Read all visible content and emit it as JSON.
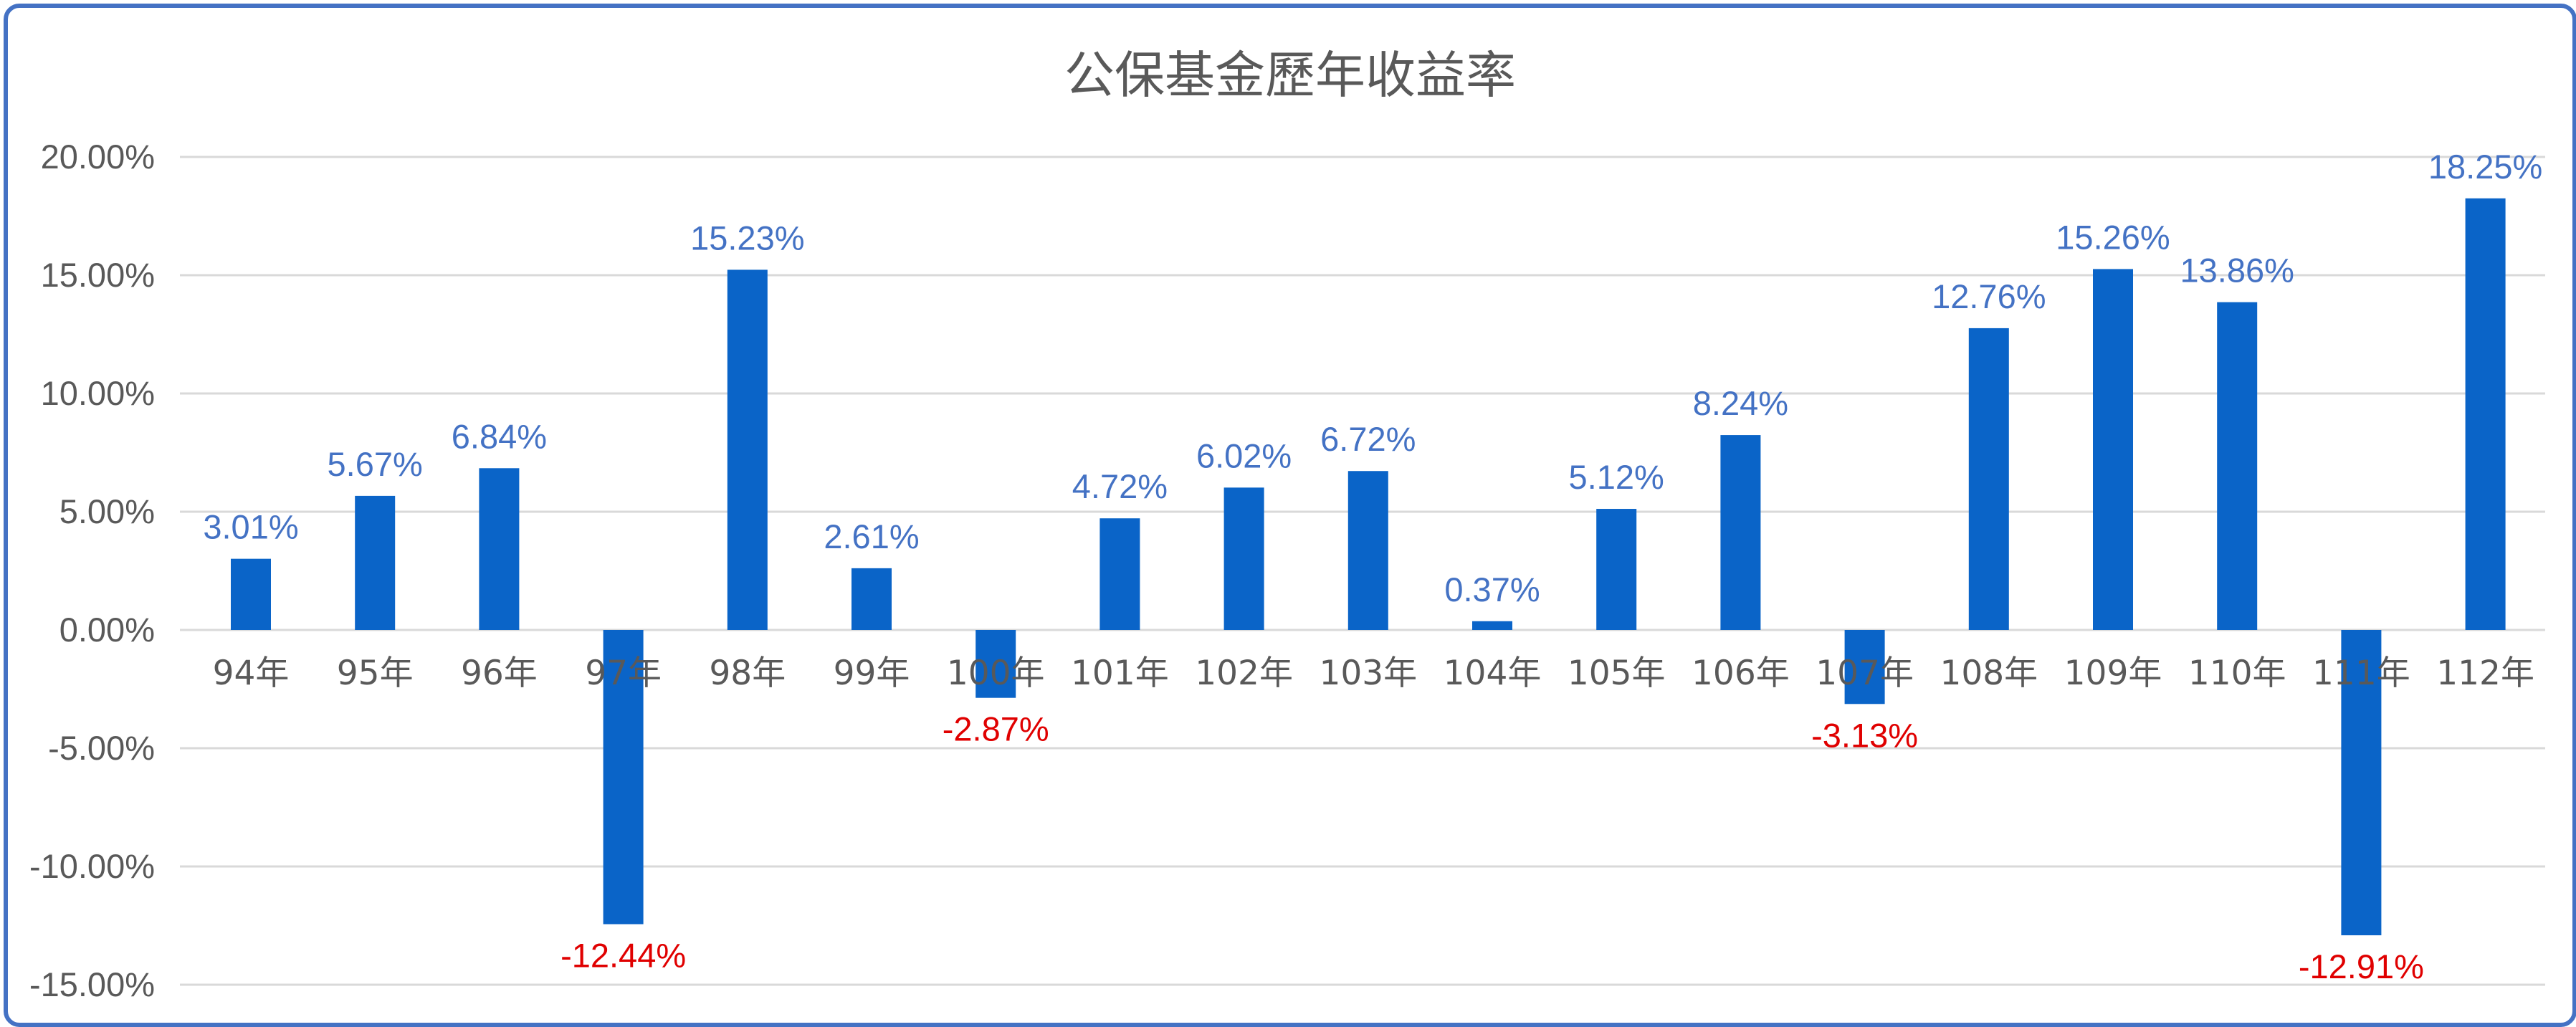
{
  "chart_data": {
    "type": "bar",
    "title": "公保基金歷年收益率",
    "xlabel": "",
    "ylabel": "",
    "ylim": [
      -15,
      20
    ],
    "grid": true,
    "legend": "none",
    "yticks": [
      "20.00%",
      "15.00%",
      "10.00%",
      "5.00%",
      "0.00%",
      "-5.00%",
      "-10.00%",
      "-15.00%"
    ],
    "ytick_values": [
      20,
      15,
      10,
      5,
      0,
      -5,
      -10,
      -15
    ],
    "categories": [
      "94年",
      "95年",
      "96年",
      "97年",
      "98年",
      "99年",
      "100年",
      "101年",
      "102年",
      "103年",
      "104年",
      "105年",
      "106年",
      "107年",
      "108年",
      "109年",
      "110年",
      "111年",
      "112年"
    ],
    "values": [
      3.01,
      5.67,
      6.84,
      -12.44,
      15.23,
      2.61,
      -2.87,
      4.72,
      6.02,
      6.72,
      0.37,
      5.12,
      8.24,
      -3.13,
      12.76,
      15.26,
      13.86,
      -12.91,
      18.25
    ],
    "labels": [
      "3.01%",
      "5.67%",
      "6.84%",
      "-12.44%",
      "15.23%",
      "2.61%",
      "-2.87%",
      "4.72%",
      "6.02%",
      "6.72%",
      "0.37%",
      "5.12%",
      "8.24%",
      "-3.13%",
      "12.76%",
      "15.26%",
      "13.86%",
      "-12.91%",
      "18.25%"
    ],
    "colors": {
      "bar": "#0a64c8",
      "positive_label": "#4472c4",
      "negative_label": "#e00000",
      "grid": "#d9d9d9",
      "axis_text": "#595959",
      "frame": "#4472c4"
    }
  }
}
